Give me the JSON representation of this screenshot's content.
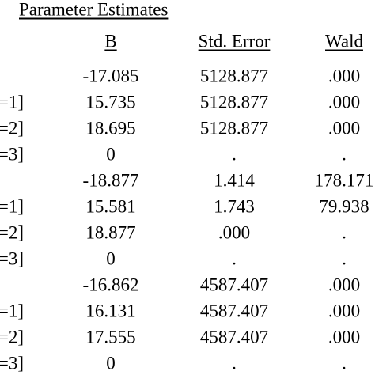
{
  "table": {
    "title": "Parameter Estimates",
    "headers": [
      "B",
      "Std. Error",
      "Wald"
    ],
    "rows": [
      [
        null,
        "-17.085",
        "5128.877",
        ".000"
      ],
      [
        "=1]",
        "15.735",
        "5128.877",
        ".000"
      ],
      [
        "=2]",
        "18.695",
        "5128.877",
        ".000"
      ],
      [
        "=3]",
        "0",
        ".",
        "."
      ],
      [
        null,
        "-18.877",
        "1.414",
        "178.171"
      ],
      [
        "=1]",
        "15.581",
        "1.743",
        "79.938"
      ],
      [
        "=2]",
        "18.877",
        ".000",
        "."
      ],
      [
        "=3]",
        "0",
        ".",
        "."
      ],
      [
        null,
        "-16.862",
        "4587.407",
        ".000"
      ],
      [
        "=1]",
        "16.131",
        "4587.407",
        ".000"
      ],
      [
        "=2]",
        "17.555",
        "4587.407",
        ".000"
      ],
      [
        "=3]",
        "0",
        ".",
        "."
      ]
    ]
  }
}
